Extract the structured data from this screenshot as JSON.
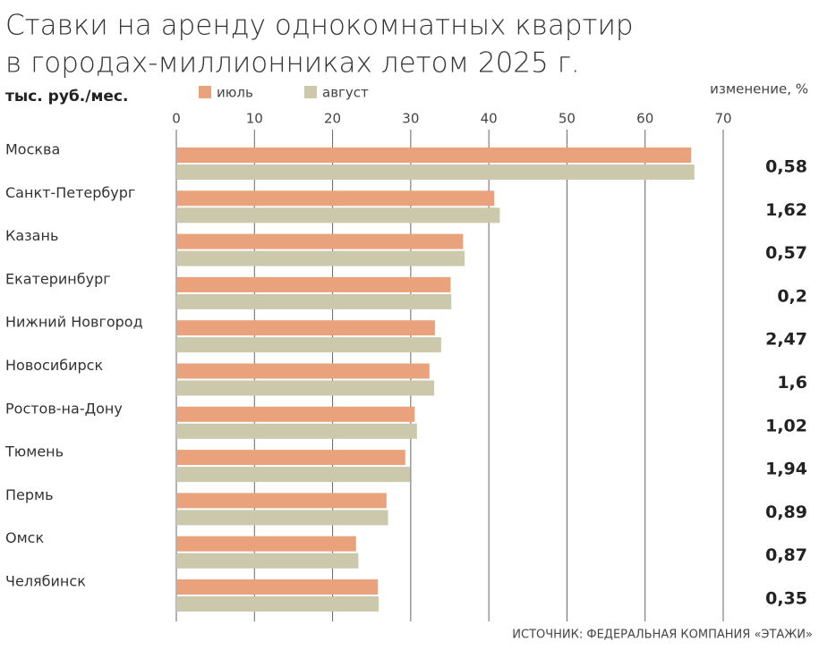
{
  "chart_data": {
    "type": "bar",
    "orientation": "horizontal",
    "title_lines": [
      "Ставки на аренду однокомнатных квартир",
      "в городах-миллионниках летом 2025 г."
    ],
    "unit": "тыс. руб./мес.",
    "source": "ИСТОЧНИК: ФЕДЕРАЛЬНАЯ КОМПАНИЯ «ЭТАЖИ»",
    "categories": [
      "Москва",
      "Санкт-Петербург",
      "Казань",
      "Екатеринбург",
      "Нижний Новгород",
      "Новосибирск",
      "Ростов-на-Дону",
      "Тюмень",
      "Пермь",
      "Омск",
      "Челябинск"
    ],
    "series": [
      {
        "name": "июль",
        "color": "#e9a27c",
        "values": [
          65.9,
          40.7,
          36.7,
          35.1,
          33.1,
          32.4,
          30.5,
          29.3,
          26.9,
          23.0,
          25.8
        ]
      },
      {
        "name": "август",
        "color": "#cbc8ac",
        "values": [
          66.3,
          41.4,
          36.9,
          35.2,
          33.9,
          33.0,
          30.8,
          29.9,
          27.1,
          23.3,
          25.9
        ]
      }
    ],
    "change": {
      "title": "изменение, %",
      "values": [
        0.58,
        1.62,
        0.57,
        0.2,
        2.47,
        1.6,
        1.02,
        1.94,
        0.89,
        0.87,
        0.35
      ],
      "value_labels": [
        "0,58",
        "1,62",
        "0,57",
        "0,2",
        "2,47",
        "1,6",
        "1,02",
        "1,94",
        "0,89",
        "0,87",
        "0,35"
      ]
    },
    "xlim": [
      0,
      70
    ],
    "xticks": [
      0,
      10,
      20,
      30,
      40,
      50,
      60,
      70
    ],
    "grid": true
  }
}
